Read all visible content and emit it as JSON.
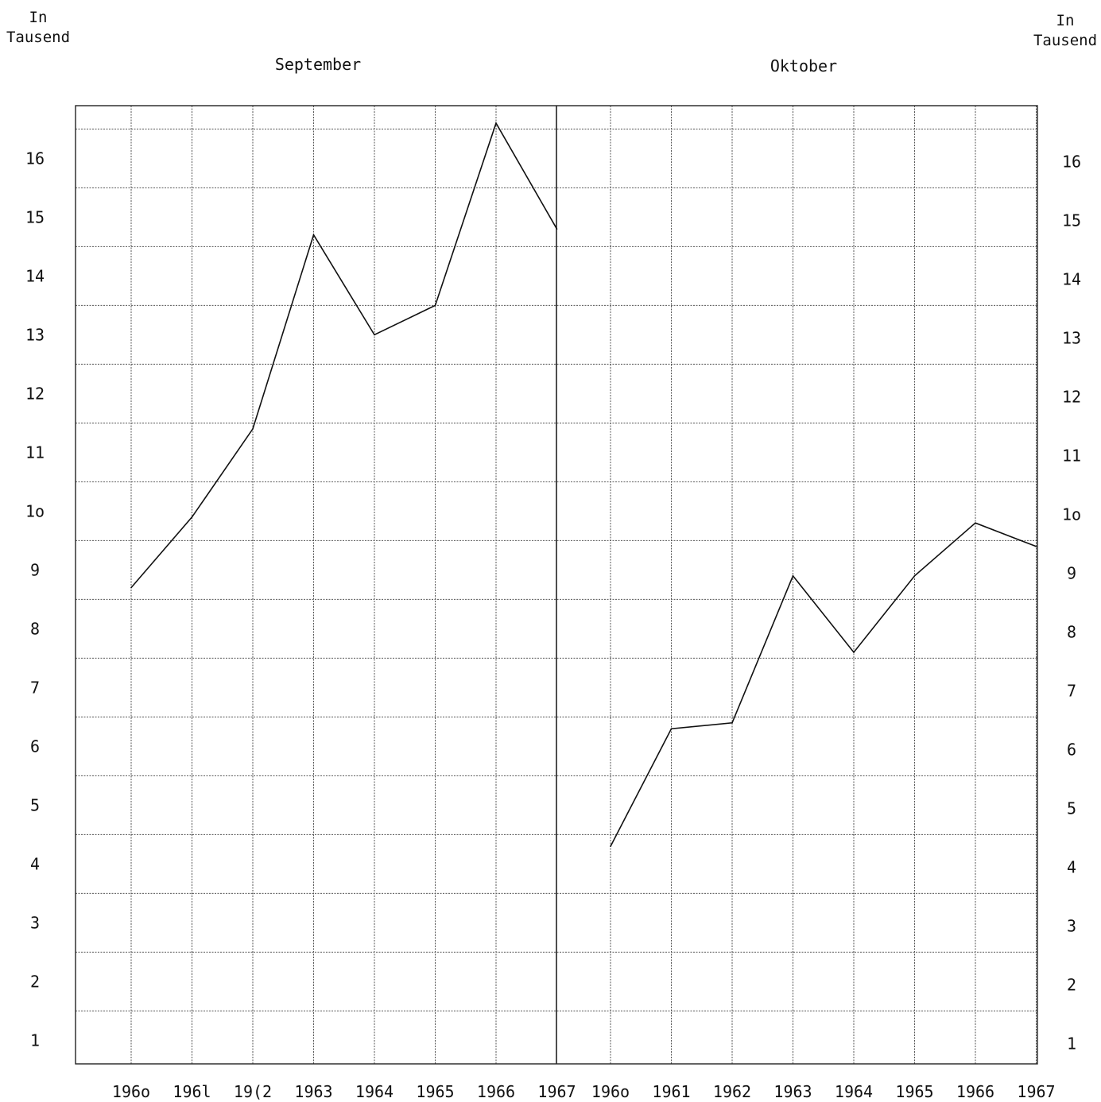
{
  "left_unit_label": [
    "In",
    "Tausend"
  ],
  "right_unit_label": [
    "In",
    "Tausend"
  ],
  "chart_data": {
    "type": "line",
    "panels": [
      {
        "title": "September",
        "x": [
          "196o",
          "196l",
          "19(2",
          "1963",
          "1964",
          "1965",
          "1966",
          "1967"
        ],
        "values": [
          8.7,
          9.9,
          11.4,
          14.7,
          13.0,
          13.5,
          16.6,
          14.8
        ]
      },
      {
        "title": "Oktober",
        "x": [
          "196o",
          "1961",
          "1962",
          "1963",
          "1964",
          "1965",
          "1966",
          "1967"
        ],
        "values": [
          4.3,
          6.3,
          6.4,
          8.9,
          7.6,
          8.9,
          9.8,
          9.4
        ]
      }
    ],
    "y_ticks_left": [
      "16",
      "15",
      "14",
      "13",
      "12",
      "11",
      "1o",
      "9",
      "8",
      "7",
      "6",
      "5",
      "4",
      "3",
      "2",
      "1"
    ],
    "y_ticks_right": [
      "16",
      "15",
      "14",
      "13",
      "12",
      "11",
      "1o",
      "9",
      "8",
      "7",
      "6",
      "5",
      "4",
      "3",
      "2",
      "1"
    ],
    "ylim": [
      0.6,
      16.9
    ],
    "grid": true,
    "line_color": "#111111"
  }
}
